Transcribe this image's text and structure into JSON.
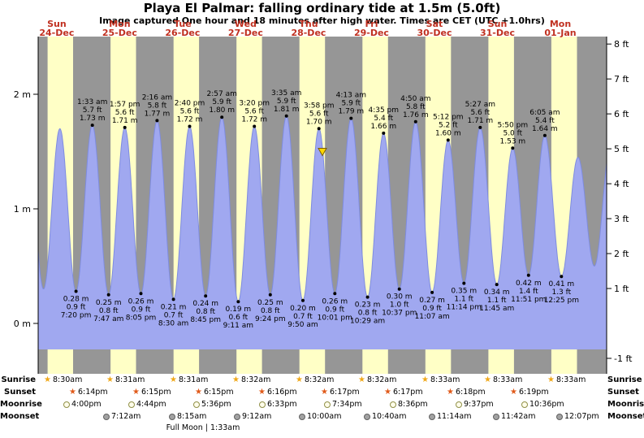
{
  "colors": {
    "night_band": "#969696",
    "day_band": "#ffffc6",
    "tide_fill": "#a0a8f0",
    "tide_stroke": "#7e8ce0",
    "day_label": "#c03020",
    "marker_fill": "#ffd700",
    "marker_stroke": "#7a5c00",
    "sunrise_star": "#f0a818",
    "sunset_star": "#e05a1a",
    "moonrise_fill": "#fffdea",
    "moonrise_stroke": "#909048",
    "moonset_fill": "#a2a2a2",
    "moonset_stroke": "#606060"
  },
  "icons": {
    "sunrise_icon": "★",
    "sunset_icon": "★"
  },
  "chart_data": {
    "type": "area",
    "title": "Playa El Palmar: falling  ordinary tide at 1.5m (5.0ft)",
    "subtitle": "Image captured One hour and 18 minutes after high water. Times are CET (UTC +1.0hrs)",
    "y_axis_left": {
      "unit": "m",
      "ticks": [
        {
          "label": "2 m",
          "value": 2
        },
        {
          "label": "1 m",
          "value": 1
        },
        {
          "label": "0 m",
          "value": 0
        }
      ]
    },
    "y_axis_right": {
      "unit": "ft",
      "ticks": [
        {
          "label": "8 ft",
          "value": 8
        },
        {
          "label": "7 ft",
          "value": 7
        },
        {
          "label": "6 ft",
          "value": 6
        },
        {
          "label": "5 ft",
          "value": 5
        },
        {
          "label": "4 ft",
          "value": 4
        },
        {
          "label": "3 ft",
          "value": 3
        },
        {
          "label": "2 ft",
          "value": 2
        },
        {
          "label": "1 ft",
          "value": 1
        },
        {
          "label": "-1 ft",
          "value": -1
        }
      ]
    },
    "days": [
      {
        "name": "Sun",
        "date": "24-Dec"
      },
      {
        "name": "Mon",
        "date": "25-Dec"
      },
      {
        "name": "Tue",
        "date": "26-Dec"
      },
      {
        "name": "Wed",
        "date": "27-Dec"
      },
      {
        "name": "Thu",
        "date": "28-Dec"
      },
      {
        "name": "Fri",
        "date": "29-Dec"
      },
      {
        "name": "Sat",
        "date": "30-Dec"
      },
      {
        "name": "Sun",
        "date": "31-Dec"
      },
      {
        "name": "Mon",
        "date": "01-Jan"
      }
    ],
    "tides": [
      {
        "type": "low",
        "t": 0.806,
        "height_m": 0.28,
        "m": "0.28 m",
        "ft": "0.9 ft",
        "time": "7:20 pm"
      },
      {
        "type": "high",
        "t": 1.065,
        "height_m": 1.73,
        "m": "1.73 m",
        "ft": "5.7 ft",
        "time": "1:33 am"
      },
      {
        "type": "low",
        "t": 1.324,
        "height_m": 0.25,
        "m": "0.25 m",
        "ft": "0.8 ft",
        "time": "7:47 am"
      },
      {
        "type": "high",
        "t": 1.581,
        "height_m": 1.71,
        "m": "1.71 m",
        "ft": "5.6 ft",
        "time": "1:57 pm"
      },
      {
        "type": "low",
        "t": 1.837,
        "height_m": 0.26,
        "m": "0.26 m",
        "ft": "0.9 ft",
        "time": "8:05 pm"
      },
      {
        "type": "high",
        "t": 2.094,
        "height_m": 1.77,
        "m": "1.77 m",
        "ft": "5.8 ft",
        "time": "2:16 am"
      },
      {
        "type": "low",
        "t": 2.354,
        "height_m": 0.21,
        "m": "0.21 m",
        "ft": "0.7 ft",
        "time": "8:30 am"
      },
      {
        "type": "high",
        "t": 2.611,
        "height_m": 1.72,
        "m": "1.72 m",
        "ft": "5.6 ft",
        "time": "2:40 pm"
      },
      {
        "type": "low",
        "t": 2.865,
        "height_m": 0.24,
        "m": "0.24 m",
        "ft": "0.8 ft",
        "time": "8:45 pm"
      },
      {
        "type": "high",
        "t": 3.123,
        "height_m": 1.8,
        "m": "1.80 m",
        "ft": "5.9 ft",
        "time": "2:57 am"
      },
      {
        "type": "low",
        "t": 3.383,
        "height_m": 0.19,
        "m": "0.19 m",
        "ft": "0.6 ft",
        "time": "9:11 am"
      },
      {
        "type": "high",
        "t": 3.639,
        "height_m": 1.72,
        "m": "1.72 m",
        "ft": "5.6 ft",
        "time": "3:20 pm"
      },
      {
        "type": "low",
        "t": 3.892,
        "height_m": 0.25,
        "m": "0.25 m",
        "ft": "0.8 ft",
        "time": "9:24 pm"
      },
      {
        "type": "high",
        "t": 4.149,
        "height_m": 1.81,
        "m": "1.81 m",
        "ft": "5.9 ft",
        "time": "3:35 am"
      },
      {
        "type": "low",
        "t": 4.41,
        "height_m": 0.2,
        "m": "0.20 m",
        "ft": "0.7 ft",
        "time": "9:50 am"
      },
      {
        "type": "high",
        "t": 4.665,
        "height_m": 1.7,
        "m": "1.70 m",
        "ft": "5.6 ft",
        "time": "3:58 pm"
      },
      {
        "type": "low",
        "t": 4.917,
        "height_m": 0.26,
        "m": "0.26 m",
        "ft": "0.9 ft",
        "time": "10:01 pm"
      },
      {
        "type": "high",
        "t": 5.176,
        "height_m": 1.79,
        "m": "1.79 m",
        "ft": "5.9 ft",
        "time": "4:13 am"
      },
      {
        "type": "low",
        "t": 5.437,
        "height_m": 0.23,
        "m": "0.23 m",
        "ft": "0.8 ft",
        "time": "10:29 am"
      },
      {
        "type": "high",
        "t": 5.691,
        "height_m": 1.66,
        "m": "1.66 m",
        "ft": "5.4 ft",
        "time": "4:35 pm"
      },
      {
        "type": "low",
        "t": 5.942,
        "height_m": 0.3,
        "m": "0.30 m",
        "ft": "1.0 ft",
        "time": "10:37 pm"
      },
      {
        "type": "high",
        "t": 6.201,
        "height_m": 1.76,
        "m": "1.76 m",
        "ft": "5.8 ft",
        "time": "4:50 am"
      },
      {
        "type": "low",
        "t": 6.463,
        "height_m": 0.27,
        "m": "0.27 m",
        "ft": "0.9 ft",
        "time": "11:07 am"
      },
      {
        "type": "high",
        "t": 6.717,
        "height_m": 1.6,
        "m": "1.60 m",
        "ft": "5.2 ft",
        "time": "5:12 pm"
      },
      {
        "type": "low",
        "t": 6.968,
        "height_m": 0.35,
        "m": "0.35 m",
        "ft": "1.1 ft",
        "time": "11:14 pm"
      },
      {
        "type": "high",
        "t": 7.227,
        "height_m": 1.71,
        "m": "1.71 m",
        "ft": "5.6 ft",
        "time": "5:27 am"
      },
      {
        "type": "low",
        "t": 7.49,
        "height_m": 0.34,
        "m": "0.34 m",
        "ft": "1.1 ft",
        "time": "11:45 am"
      },
      {
        "type": "high",
        "t": 7.743,
        "height_m": 1.53,
        "m": "1.53 m",
        "ft": "5.0 ft",
        "time": "5:50 pm"
      },
      {
        "type": "low",
        "t": 7.994,
        "height_m": 0.42,
        "m": "0.42 m",
        "ft": "1.4 ft",
        "time": "11:51 pm"
      },
      {
        "type": "high",
        "t": 8.253,
        "height_m": 1.64,
        "m": "1.64 m",
        "ft": "5.4 ft",
        "time": "6:05 am"
      },
      {
        "type": "low",
        "t": 8.517,
        "height_m": 0.41,
        "m": "0.41 m",
        "ft": "1.3 ft",
        "time": "12:25 pm"
      }
    ],
    "edge_points": [
      {
        "t": 0.03,
        "height_m": 1.68
      },
      {
        "t": 0.29,
        "height_m": 0.3
      },
      {
        "t": 0.55,
        "height_m": 1.7
      },
      {
        "t": 8.78,
        "height_m": 1.45
      },
      {
        "t": 9.04,
        "height_m": 0.5
      },
      {
        "t": 9.3,
        "height_m": 1.55
      }
    ],
    "current_marker": {
      "t": 4.72,
      "value_m": 1.5
    },
    "sun_moon": {
      "sunrise": {
        "label": "Sunrise",
        "times": [
          {
            "day": 0,
            "time": "8:30am"
          },
          {
            "day": 1,
            "time": "8:31am"
          },
          {
            "day": 2,
            "time": "8:31am"
          },
          {
            "day": 3,
            "time": "8:32am"
          },
          {
            "day": 4,
            "time": "8:32am"
          },
          {
            "day": 5,
            "time": "8:32am"
          },
          {
            "day": 6,
            "time": "8:33am"
          },
          {
            "day": 7,
            "time": "8:33am"
          },
          {
            "day": 8,
            "time": "8:33am"
          }
        ]
      },
      "sunset": {
        "label": "Sunset",
        "times": [
          {
            "day": 0,
            "time": "6:14pm"
          },
          {
            "day": 1,
            "time": "6:15pm"
          },
          {
            "day": 2,
            "time": "6:15pm"
          },
          {
            "day": 3,
            "time": "6:16pm"
          },
          {
            "day": 4,
            "time": "6:17pm"
          },
          {
            "day": 5,
            "time": "6:17pm"
          },
          {
            "day": 6,
            "time": "6:18pm"
          },
          {
            "day": 7,
            "time": "6:19pm"
          }
        ]
      },
      "moonrise": {
        "label": "Moonrise",
        "times": [
          {
            "day": 0,
            "time": "4:00pm"
          },
          {
            "day": 1,
            "time": "4:44pm"
          },
          {
            "day": 2,
            "time": "5:36pm"
          },
          {
            "day": 3,
            "time": "6:33pm"
          },
          {
            "day": 4,
            "time": "7:34pm"
          },
          {
            "day": 5,
            "time": "8:36pm"
          },
          {
            "day": 6,
            "time": "9:37pm"
          },
          {
            "day": 7,
            "time": "10:36pm"
          }
        ]
      },
      "moonset": {
        "label": "Moonset",
        "times": [
          {
            "day": 1,
            "time": "7:12am"
          },
          {
            "day": 2,
            "time": "8:15am"
          },
          {
            "day": 3,
            "time": "9:12am"
          },
          {
            "day": 4,
            "time": "10:00am"
          },
          {
            "day": 5,
            "time": "10:40am"
          },
          {
            "day": 6,
            "time": "11:14am"
          },
          {
            "day": 7,
            "time": "11:42am"
          },
          {
            "day": 8,
            "time": "12:07pm"
          }
        ]
      },
      "full_moon": {
        "label": "Full Moon | 1:33am",
        "t": 2.82
      }
    }
  }
}
